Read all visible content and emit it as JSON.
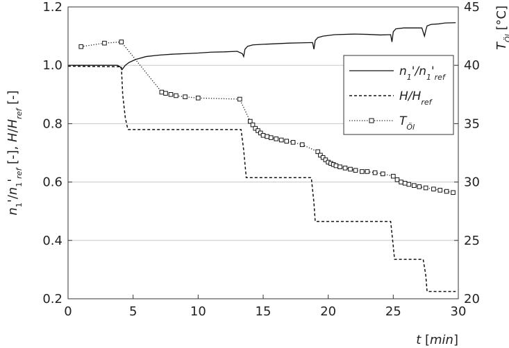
{
  "chart_data": {
    "type": "line",
    "x_axis": {
      "range": [
        0,
        30
      ],
      "ticks": [
        0,
        5,
        10,
        15,
        20,
        25,
        30
      ],
      "tick_labels": [
        "0",
        "5",
        "10",
        "15",
        "20",
        "25",
        "30"
      ],
      "label": "t [min]"
    },
    "y_left_axis": {
      "range": [
        0.2,
        1.2
      ],
      "ticks": [
        0.2,
        0.4,
        0.6,
        0.8,
        1.0,
        1.2
      ],
      "tick_labels": [
        "0.2",
        "0.4",
        "0.6",
        "0.8",
        "1.0",
        "1.2"
      ],
      "label": "n1'/n1'ref [-], H/Href [-]"
    },
    "y_right_axis": {
      "range": [
        20,
        45
      ],
      "ticks": [
        20,
        25,
        30,
        35,
        40,
        45
      ],
      "tick_labels": [
        "20",
        "25",
        "30",
        "35",
        "40",
        "45"
      ],
      "label": "TÖl [°C]"
    },
    "grid": "horizontal",
    "legend_position": "right",
    "series": [
      {
        "name": "n1'/n1'ref",
        "axis": "left",
        "style": "solid",
        "x": [
          0,
          2,
          3.8,
          4.0,
          4.15,
          4.4,
          4.7,
          5.2,
          6,
          7,
          8,
          9,
          10,
          11,
          12,
          13.0,
          13.4,
          13.5,
          13.6,
          13.8,
          14.2,
          15,
          16,
          17,
          18,
          18.8,
          18.9,
          19.0,
          19.2,
          19.6,
          20.5,
          22,
          23,
          24,
          24.8,
          24.9,
          25.0,
          25.2,
          25.8,
          26.5,
          27.2,
          27.4,
          27.5,
          27.6,
          27.9,
          28.5,
          29,
          29.8
        ],
        "y": [
          1.0,
          1.0,
          1.0,
          0.995,
          0.985,
          1.0,
          1.01,
          1.02,
          1.03,
          1.035,
          1.038,
          1.04,
          1.042,
          1.045,
          1.046,
          1.048,
          1.04,
          1.03,
          1.055,
          1.065,
          1.07,
          1.072,
          1.074,
          1.076,
          1.077,
          1.078,
          1.055,
          1.085,
          1.095,
          1.1,
          1.105,
          1.107,
          1.106,
          1.104,
          1.105,
          1.08,
          1.115,
          1.125,
          1.128,
          1.128,
          1.128,
          1.1,
          1.12,
          1.135,
          1.14,
          1.142,
          1.145,
          1.146
        ]
      },
      {
        "name": "H/Href",
        "axis": "left",
        "style": "dashed",
        "x": [
          0,
          4.1,
          4.2,
          4.4,
          4.6,
          13.3,
          13.5,
          13.7,
          18.7,
          18.9,
          19.0,
          24.8,
          25.0,
          25.1,
          27.3,
          27.5,
          27.6,
          29.8
        ],
        "y": [
          0.997,
          0.995,
          0.9,
          0.82,
          0.78,
          0.78,
          0.71,
          0.615,
          0.615,
          0.53,
          0.465,
          0.465,
          0.38,
          0.335,
          0.335,
          0.28,
          0.225,
          0.225
        ]
      },
      {
        "name": "TÖl",
        "axis": "right",
        "style": "dotted-square",
        "x": [
          1.0,
          2.8,
          4.1,
          7.2,
          7.5,
          7.9,
          8.3,
          9.0,
          10.0,
          13.2,
          14.0,
          14.2,
          14.4,
          14.6,
          14.8,
          15.0,
          15.3,
          15.6,
          16.0,
          16.4,
          16.8,
          17.3,
          18.0,
          19.2,
          19.4,
          19.6,
          19.8,
          20.0,
          20.2,
          20.4,
          20.6,
          20.9,
          21.3,
          21.7,
          22.1,
          22.6,
          23.0,
          23.6,
          24.2,
          25.0,
          25.3,
          25.6,
          25.9,
          26.2,
          26.6,
          27.0,
          27.5,
          28.1,
          28.6,
          29.1,
          29.6
        ],
        "y": [
          41.6,
          41.9,
          42.0,
          37.7,
          37.6,
          37.5,
          37.4,
          37.3,
          37.2,
          37.1,
          35.2,
          34.9,
          34.6,
          34.4,
          34.2,
          34.0,
          33.9,
          33.8,
          33.7,
          33.6,
          33.5,
          33.4,
          33.2,
          32.6,
          32.3,
          32.1,
          31.9,
          31.7,
          31.6,
          31.5,
          31.4,
          31.3,
          31.2,
          31.1,
          31.0,
          30.9,
          30.9,
          30.8,
          30.7,
          30.5,
          30.2,
          30.0,
          29.9,
          29.8,
          29.7,
          29.6,
          29.5,
          29.4,
          29.3,
          29.2,
          29.1
        ]
      }
    ],
    "legend": {
      "items": [
        {
          "key": "n1'/n1'ref",
          "style": "solid"
        },
        {
          "key": "H/Href",
          "style": "dashed"
        },
        {
          "key": "TÖl",
          "style": "dotted-square"
        }
      ]
    }
  }
}
